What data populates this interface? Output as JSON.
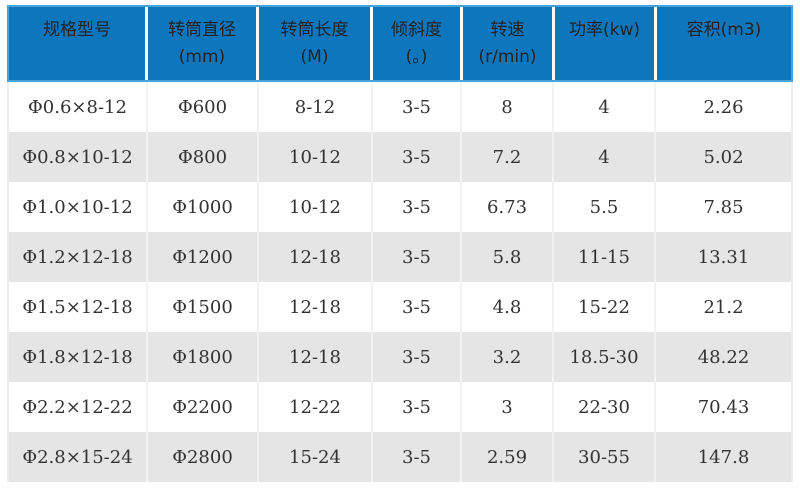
{
  "chart_data": {
    "type": "table",
    "title": "",
    "columns": [
      "规格型号",
      "转筒直径(mm)",
      "转筒长度(M)",
      "倾斜度(。)",
      "转速(r/min)",
      "功率(kw)",
      "容积(m3)"
    ],
    "rows": [
      [
        "Φ0.6×8-12",
        "Φ600",
        "8-12",
        "3-5",
        "8",
        "4",
        "2.26"
      ],
      [
        "Φ0.8×10-12",
        "Φ800",
        "10-12",
        "3-5",
        "7.2",
        "4",
        "5.02"
      ],
      [
        "Φ1.0×10-12",
        "Φ1000",
        "10-12",
        "3-5",
        "6.73",
        "5.5",
        "7.85"
      ],
      [
        "Φ1.2×12-18",
        "Φ1200",
        "12-18",
        "3-5",
        "5.8",
        "11-15",
        "13.31"
      ],
      [
        "Φ1.5×12-18",
        "Φ1500",
        "12-18",
        "3-5",
        "4.8",
        "15-22",
        "21.2"
      ],
      [
        "Φ1.8×12-18",
        "Φ1800",
        "12-18",
        "3-5",
        "3.2",
        "18.5-30",
        "48.22"
      ],
      [
        "Φ2.2×12-22",
        "Φ2200",
        "12-22",
        "3-5",
        "3",
        "22-30",
        "70.43"
      ],
      [
        "Φ2.8×15-24",
        "Φ2800",
        "15-24",
        "3-5",
        "2.59",
        "30-55",
        "147.8"
      ]
    ]
  },
  "table": {
    "headers": [
      {
        "line1": "规格型号",
        "line2": ""
      },
      {
        "line1": "转筒直径",
        "line2": "(mm)"
      },
      {
        "line1": "转筒长度",
        "line2": "(M)"
      },
      {
        "line1": "倾斜度",
        "line2": "(。)"
      },
      {
        "line1": "转速",
        "line2": "(r/min)"
      },
      {
        "line1": "功率(kw)",
        "line2": ""
      },
      {
        "line1": "容积(m3)",
        "line2": ""
      }
    ],
    "rows": [
      {
        "cells": [
          "Φ0.6×8-12",
          "Φ600",
          "8-12",
          "3-5",
          "8",
          "4",
          "2.26"
        ]
      },
      {
        "cells": [
          "Φ0.8×10-12",
          "Φ800",
          "10-12",
          "3-5",
          "7.2",
          "4",
          "5.02"
        ]
      },
      {
        "cells": [
          "Φ1.0×10-12",
          "Φ1000",
          "10-12",
          "3-5",
          "6.73",
          "5.5",
          "7.85"
        ]
      },
      {
        "cells": [
          "Φ1.2×12-18",
          "Φ1200",
          "12-18",
          "3-5",
          "5.8",
          "11-15",
          "13.31"
        ]
      },
      {
        "cells": [
          "Φ1.5×12-18",
          "Φ1500",
          "12-18",
          "3-5",
          "4.8",
          "15-22",
          "21.2"
        ]
      },
      {
        "cells": [
          "Φ1.8×12-18",
          "Φ1800",
          "12-18",
          "3-5",
          "3.2",
          "18.5-30",
          "48.22"
        ]
      },
      {
        "cells": [
          "Φ2.2×12-22",
          "Φ2200",
          "12-22",
          "3-5",
          "3",
          "22-30",
          "70.43"
        ]
      },
      {
        "cells": [
          "Φ2.8×15-24",
          "Φ2800",
          "15-24",
          "3-5",
          "2.59",
          "30-55",
          "147.8"
        ]
      }
    ]
  },
  "colors": {
    "header_bg": "#0e76bc",
    "header_border": "#46a1dd",
    "header_text": "#222222",
    "body_text": "#333333",
    "row_white_bg": "#ffffff",
    "row_gray_bg": "#e5e5e5",
    "divider": "#f2f2f2"
  }
}
